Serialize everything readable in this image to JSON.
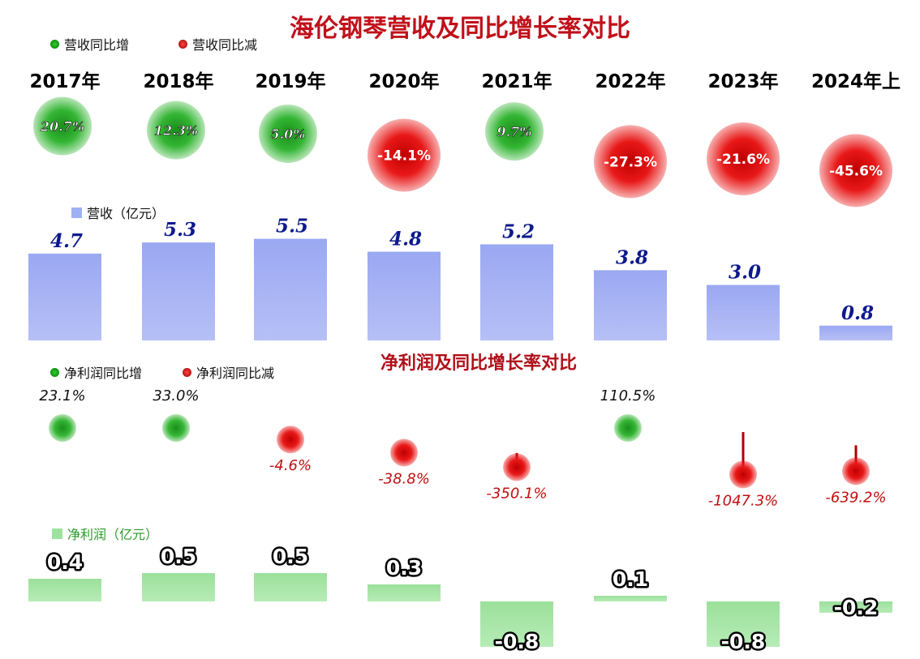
{
  "title": "海伦钢琴营收及同比增长率对比",
  "subtitle": "净利润及同比增长率对比",
  "legend": {
    "rev_up": "营收同比增",
    "rev_down": "营收同比减",
    "revenue": "营收（亿元）",
    "np_up": "净利润同比增",
    "np_down": "净利润同比减",
    "net_profit": "净利润（亿元）"
  },
  "colors": {
    "up": "#1fa31f",
    "down": "#e01010",
    "revenue_bar": "#a8b4f4",
    "profit_bar": "#a6e7a6",
    "revenue_label": "#0d1a8c",
    "down_text": "#c01010"
  },
  "chart_data": [
    {
      "type": "scatter",
      "name": "revenue_growth",
      "categories": [
        "2017年",
        "2018年",
        "2019年",
        "2020年",
        "2021年",
        "2022年",
        "2023年",
        "2024年上"
      ],
      "values": [
        20.7,
        12.3,
        5.0,
        -14.1,
        9.7,
        -27.3,
        -21.6,
        -45.6
      ],
      "labels": [
        "20.7%",
        "12.3%",
        "5.0%",
        "-14.1%",
        "9.7%",
        "-27.3%",
        "-21.6%",
        "-45.6%"
      ]
    },
    {
      "type": "bar",
      "name": "revenue",
      "categories": [
        "2017年",
        "2018年",
        "2019年",
        "2020年",
        "2021年",
        "2022年",
        "2023年",
        "2024年上"
      ],
      "values": [
        4.7,
        5.3,
        5.5,
        4.8,
        5.2,
        3.8,
        3.0,
        0.8
      ],
      "labels": [
        "4.7",
        "5.3",
        "5.5",
        "4.8",
        "5.2",
        "3.8",
        "3.0",
        "0.8"
      ]
    },
    {
      "type": "scatter",
      "name": "net_profit_growth",
      "categories": [
        "2017年",
        "2018年",
        "2019年",
        "2020年",
        "2021年",
        "2022年",
        "2023年",
        "2024年上"
      ],
      "values": [
        23.1,
        33.0,
        -4.6,
        -38.8,
        -350.1,
        110.5,
        -1047.3,
        -639.2
      ],
      "labels": [
        "23.1%",
        "33.0%",
        "-4.6%",
        "-38.8%",
        "-350.1%",
        "110.5%",
        "-1047.3%",
        "-639.2%"
      ]
    },
    {
      "type": "bar",
      "name": "net_profit",
      "categories": [
        "2017年",
        "2018年",
        "2019年",
        "2020年",
        "2021年",
        "2022年",
        "2023年",
        "2024年上"
      ],
      "values": [
        0.4,
        0.5,
        0.5,
        0.3,
        -0.8,
        0.1,
        -0.8,
        -0.2
      ],
      "labels": [
        "0.4",
        "0.5",
        "0.5",
        "0.3",
        "-0.8",
        "0.1",
        "-0.8",
        "-0.2"
      ]
    }
  ]
}
